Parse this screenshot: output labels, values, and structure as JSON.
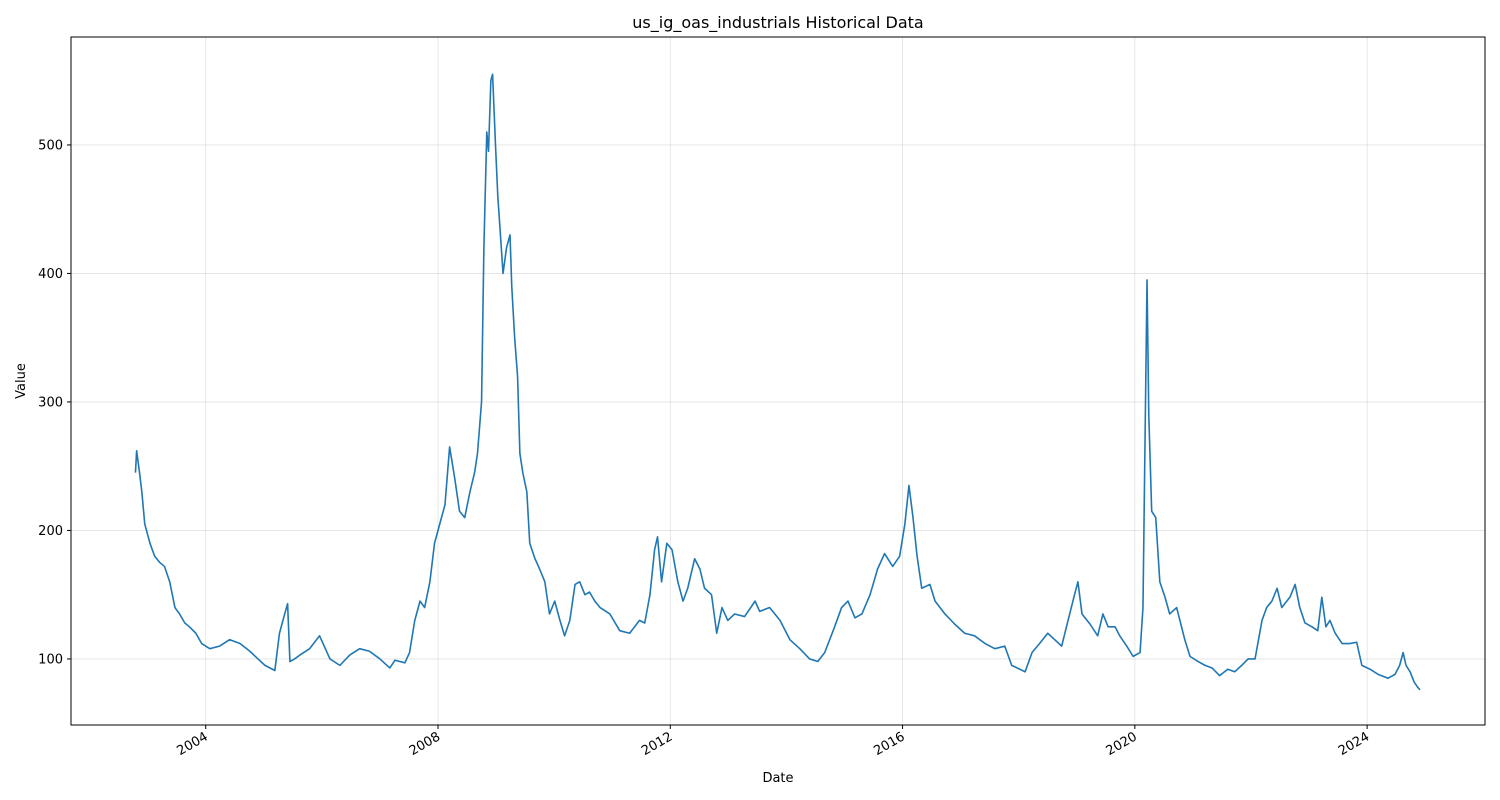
{
  "chart_data": {
    "type": "line",
    "title": "us_ig_oas_industrials Historical Data",
    "x_label": "Date",
    "y_label": "Value",
    "xlim": [
      2001.68,
      2026.03
    ],
    "ylim": [
      48.6,
      584
    ],
    "xticks": [
      2004,
      2008,
      2012,
      2016,
      2020,
      2024
    ],
    "yticks": [
      100,
      200,
      300,
      400,
      500
    ],
    "grid": true,
    "series": [
      {
        "name": "us_ig_oas_industrials",
        "color": "#1f77b4",
        "x": [
          2002.79,
          2002.81,
          2002.86,
          2002.9,
          2002.95,
          2003.04,
          2003.12,
          2003.21,
          2003.29,
          2003.38,
          2003.47,
          2003.55,
          2003.64,
          2003.72,
          2003.83,
          2003.93,
          2004.07,
          2004.24,
          2004.41,
          2004.59,
          2004.76,
          2004.9,
          2005.02,
          2005.19,
          2005.27,
          2005.36,
          2005.41,
          2005.45,
          2005.53,
          2005.62,
          2005.79,
          2005.96,
          2006.14,
          2006.31,
          2006.48,
          2006.65,
          2006.82,
          2007.0,
          2007.17,
          2007.26,
          2007.43,
          2007.51,
          2007.6,
          2007.69,
          2007.77,
          2007.86,
          2007.94,
          2008.03,
          2008.12,
          2008.2,
          2008.29,
          2008.37,
          2008.46,
          2008.55,
          2008.63,
          2008.68,
          2008.75,
          2008.79,
          2008.84,
          2008.87,
          2008.91,
          2008.94,
          2008.99,
          2009.03,
          2009.06,
          2009.12,
          2009.18,
          2009.24,
          2009.27,
          2009.32,
          2009.37,
          2009.41,
          2009.46,
          2009.53,
          2009.58,
          2009.67,
          2009.75,
          2009.84,
          2009.92,
          2010.01,
          2010.1,
          2010.18,
          2010.27,
          2010.36,
          2010.44,
          2010.53,
          2010.61,
          2010.7,
          2010.79,
          2010.96,
          2011.13,
          2011.3,
          2011.47,
          2011.56,
          2011.65,
          2011.73,
          2011.78,
          2011.85,
          2011.94,
          2012.03,
          2012.13,
          2012.22,
          2012.3,
          2012.42,
          2012.51,
          2012.59,
          2012.71,
          2012.8,
          2012.89,
          2012.99,
          2013.11,
          2013.28,
          2013.46,
          2013.54,
          2013.71,
          2013.89,
          2014.06,
          2014.23,
          2014.4,
          2014.54,
          2014.66,
          2014.83,
          2014.95,
          2015.06,
          2015.18,
          2015.3,
          2015.44,
          2015.57,
          2015.69,
          2015.83,
          2015.95,
          2016.04,
          2016.11,
          2016.18,
          2016.25,
          2016.33,
          2016.47,
          2016.56,
          2016.73,
          2016.9,
          2017.07,
          2017.24,
          2017.42,
          2017.59,
          2017.76,
          2017.88,
          2018.02,
          2018.11,
          2018.23,
          2018.36,
          2018.5,
          2018.62,
          2018.74,
          2018.85,
          2018.95,
          2019.02,
          2019.09,
          2019.23,
          2019.36,
          2019.45,
          2019.54,
          2019.66,
          2019.74,
          2019.86,
          2019.97,
          2020.09,
          2020.14,
          2020.17,
          2020.21,
          2020.24,
          2020.29,
          2020.36,
          2020.43,
          2020.52,
          2020.6,
          2020.72,
          2020.86,
          2020.95,
          2021.09,
          2021.21,
          2021.33,
          2021.46,
          2021.6,
          2021.72,
          2021.84,
          2021.95,
          2022.07,
          2022.19,
          2022.27,
          2022.36,
          2022.45,
          2022.53,
          2022.67,
          2022.76,
          2022.84,
          2022.93,
          2023.05,
          2023.15,
          2023.22,
          2023.29,
          2023.36,
          2023.45,
          2023.57,
          2023.7,
          2023.82,
          2023.91,
          2024.05,
          2024.19,
          2024.36,
          2024.48,
          2024.56,
          2024.62,
          2024.67,
          2024.74,
          2024.81,
          2024.87,
          2024.91
        ],
        "values": [
          245,
          262,
          245,
          230,
          205,
          190,
          180,
          175,
          172,
          160,
          140,
          135,
          128,
          125,
          120,
          112,
          108,
          110,
          115,
          112,
          106,
          100,
          95,
          91,
          120,
          135,
          143,
          98,
          100,
          103,
          108,
          118,
          100,
          95,
          103,
          108,
          106,
          100,
          93,
          99,
          97,
          105,
          130,
          145,
          140,
          160,
          190,
          205,
          220,
          265,
          240,
          215,
          210,
          230,
          245,
          260,
          300,
          420,
          510,
          495,
          550,
          555,
          500,
          460,
          440,
          400,
          420,
          430,
          390,
          350,
          320,
          260,
          245,
          230,
          190,
          178,
          170,
          160,
          135,
          145,
          130,
          118,
          130,
          158,
          160,
          150,
          152,
          145,
          140,
          135,
          122,
          120,
          130,
          128,
          150,
          185,
          195,
          160,
          190,
          185,
          160,
          145,
          155,
          178,
          170,
          155,
          150,
          120,
          140,
          130,
          135,
          133,
          145,
          137,
          140,
          130,
          115,
          108,
          100,
          98,
          105,
          125,
          140,
          145,
          132,
          135,
          150,
          170,
          182,
          172,
          180,
          205,
          235,
          210,
          180,
          155,
          158,
          145,
          135,
          127,
          120,
          118,
          112,
          108,
          110,
          95,
          92,
          90,
          105,
          112,
          120,
          115,
          110,
          130,
          148,
          160,
          135,
          127,
          118,
          135,
          125,
          125,
          118,
          110,
          102,
          105,
          140,
          250,
          395,
          290,
          215,
          210,
          160,
          148,
          135,
          140,
          115,
          102,
          98,
          95,
          93,
          87,
          92,
          90,
          95,
          100,
          100,
          130,
          140,
          145,
          155,
          140,
          148,
          158,
          140,
          128,
          125,
          122,
          148,
          125,
          130,
          120,
          112,
          112,
          113,
          95,
          92,
          88,
          85,
          88,
          95,
          105,
          95,
          90,
          82,
          78,
          76
        ]
      }
    ]
  }
}
